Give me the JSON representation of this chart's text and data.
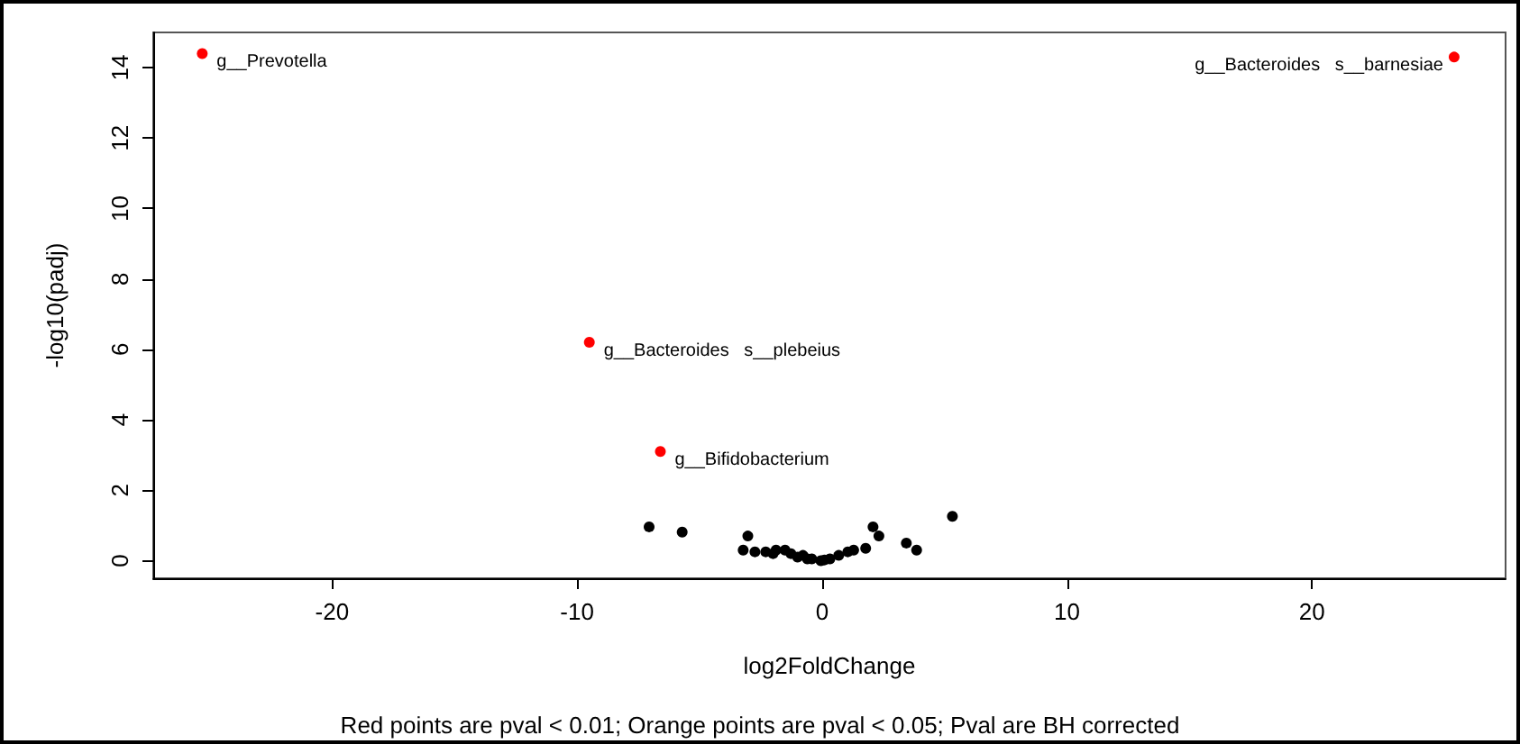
{
  "chart_data": {
    "type": "scatter",
    "xlabel": "log2FoldChange",
    "ylabel": "-log10(padj)",
    "xlim": [
      -27.3,
      27.9
    ],
    "ylim": [
      -0.5,
      15
    ],
    "xticks": [
      -20,
      -10,
      0,
      10,
      20
    ],
    "yticks": [
      0,
      2,
      4,
      6,
      8,
      10,
      12,
      14
    ],
    "grid": false,
    "marker": "circle",
    "series": [
      {
        "color": "#000000",
        "x": [
          -7.06,
          -5.71,
          -3.03,
          -3.22,
          -2.74,
          -2.3,
          -1.88,
          -1.51,
          -1.27,
          -0.78,
          -0.42,
          -0.05,
          0.32,
          0.68,
          1.05,
          1.29,
          1.78,
          2.08,
          2.32,
          3.44,
          3.86,
          5.32,
          -1.0,
          -0.6,
          0.1,
          -2.0
        ],
        "values": [
          0.96,
          0.81,
          0.7,
          0.3,
          0.25,
          0.25,
          0.3,
          0.3,
          0.2,
          0.15,
          0.05,
          0,
          0.05,
          0.15,
          0.25,
          0.3,
          0.35,
          0.96,
          0.7,
          0.5,
          0.3,
          1.26,
          0.1,
          0.05,
          0.02,
          0.2
        ]
      },
      {
        "color": "#ff0000",
        "x": [
          -25.3,
          25.8,
          -9.5,
          -6.6
        ],
        "values": [
          14.4,
          14.3,
          6.2,
          3.1
        ]
      }
    ],
    "annotations": [
      {
        "text": "g__Prevotella",
        "x": -25.3,
        "y": 14.4
      },
      {
        "text": "g__Bacteroides   s__barnesiae",
        "x": 25.8,
        "y": 14.3
      },
      {
        "text": "g__Bacteroides   s__plebeius",
        "x": -9.5,
        "y": 6.2
      },
      {
        "text": "g__Bifidobacterium",
        "x": -6.6,
        "y": 3.1
      },
      "Red points are pval < 0.01; Orange points are pval < 0.05; Pval are BH corrected"
    ]
  }
}
